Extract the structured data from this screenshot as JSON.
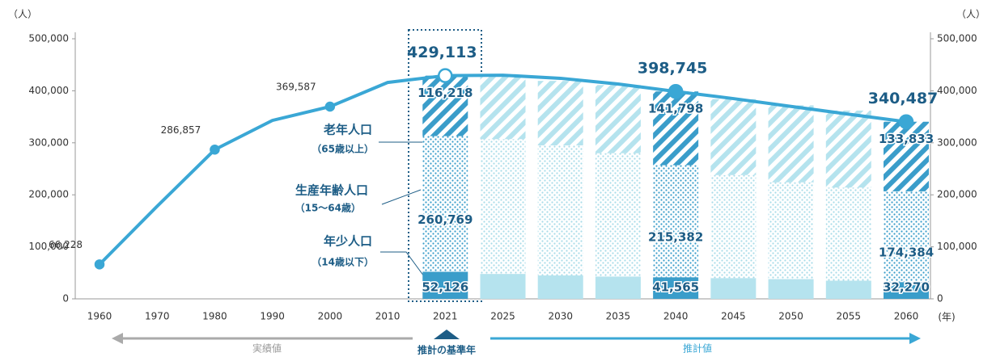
{
  "chart_data": {
    "type": "bar_line",
    "y_unit": "（人）",
    "y2_unit": "（人）",
    "x_unit": "(年)",
    "categories": [
      "1960",
      "1970",
      "1980",
      "1990",
      "2000",
      "2010",
      "2021",
      "2025",
      "2030",
      "2035",
      "2040",
      "2045",
      "2050",
      "2055",
      "2060"
    ],
    "series": [
      {
        "name": "年少人口",
        "age_range": "（14歳以下）",
        "color": "#3a9dca",
        "light_color": "#b5e3ee",
        "pattern": "solid",
        "values": [
          null,
          null,
          null,
          null,
          null,
          null,
          52126,
          48000,
          45000,
          43000,
          41565,
          40000,
          38000,
          35000,
          32270
        ],
        "value_labels": [
          null,
          null,
          null,
          null,
          null,
          null,
          "52,126",
          null,
          null,
          null,
          "41,565",
          null,
          null,
          null,
          "32,270"
        ]
      },
      {
        "name": "生産年齢人口",
        "age_range": "（15～64歳）",
        "color": "#3a9dca",
        "light_color": "#a9dce9",
        "pattern": "dots",
        "values": [
          null,
          null,
          null,
          null,
          null,
          null,
          260769,
          259000,
          250000,
          237000,
          215382,
          198000,
          186000,
          179000,
          174384
        ],
        "value_labels": [
          null,
          null,
          null,
          null,
          null,
          null,
          "260,769",
          null,
          null,
          null,
          "215,382",
          null,
          null,
          null,
          "174,384"
        ]
      },
      {
        "name": "老年人口",
        "age_range": "（65歳以上）",
        "color": "#3a9dca",
        "light_color": "#b5e3ee",
        "pattern": "stripes",
        "values": [
          null,
          null,
          null,
          null,
          null,
          null,
          116218,
          120000,
          124000,
          131000,
          141798,
          146000,
          148000,
          148000,
          133833
        ],
        "value_labels": [
          null,
          null,
          null,
          null,
          null,
          null,
          "116,218",
          null,
          null,
          null,
          "141,798",
          null,
          null,
          null,
          "133,833"
        ]
      },
      {
        "color": "#3aa7d5",
        "kind": "line",
        "values": [
          66228,
          178000,
          286857,
          343000,
          369587,
          416000,
          429113,
          430000,
          424000,
          413000,
          398745,
          385000,
          370000,
          355000,
          340487
        ],
        "value_labels": [
          "66,228",
          null,
          "286,857",
          null,
          "369,587",
          null,
          "429,113",
          null,
          null,
          null,
          "398,745",
          null,
          null,
          null,
          "340,487"
        ]
      }
    ],
    "ylim": [
      0,
      500000
    ],
    "yticks": [
      0,
      {
        "value": 100000,
        "label": "100,000"
      },
      {
        "value": 200000,
        "label": "200,000"
      },
      {
        "value": 300000,
        "label": "300,000"
      },
      {
        "value": 400000,
        "label": "400,000"
      },
      {
        "value": 500000,
        "label": "500,000"
      }
    ],
    "y2lim": [
      0,
      500000
    ],
    "y2ticks": [
      0,
      {
        "value": 100000,
        "label": "100,000"
      },
      {
        "value": 200000,
        "label": "200,000"
      },
      {
        "value": 300000,
        "label": "300,000"
      },
      {
        "value": 400000,
        "label": "400,000"
      },
      {
        "value": 500000,
        "label": "500,000"
      }
    ],
    "grid": false,
    "annotations": {
      "actual": "実績値",
      "base_year": "推計の基準年",
      "estimate": "推計値"
    }
  }
}
